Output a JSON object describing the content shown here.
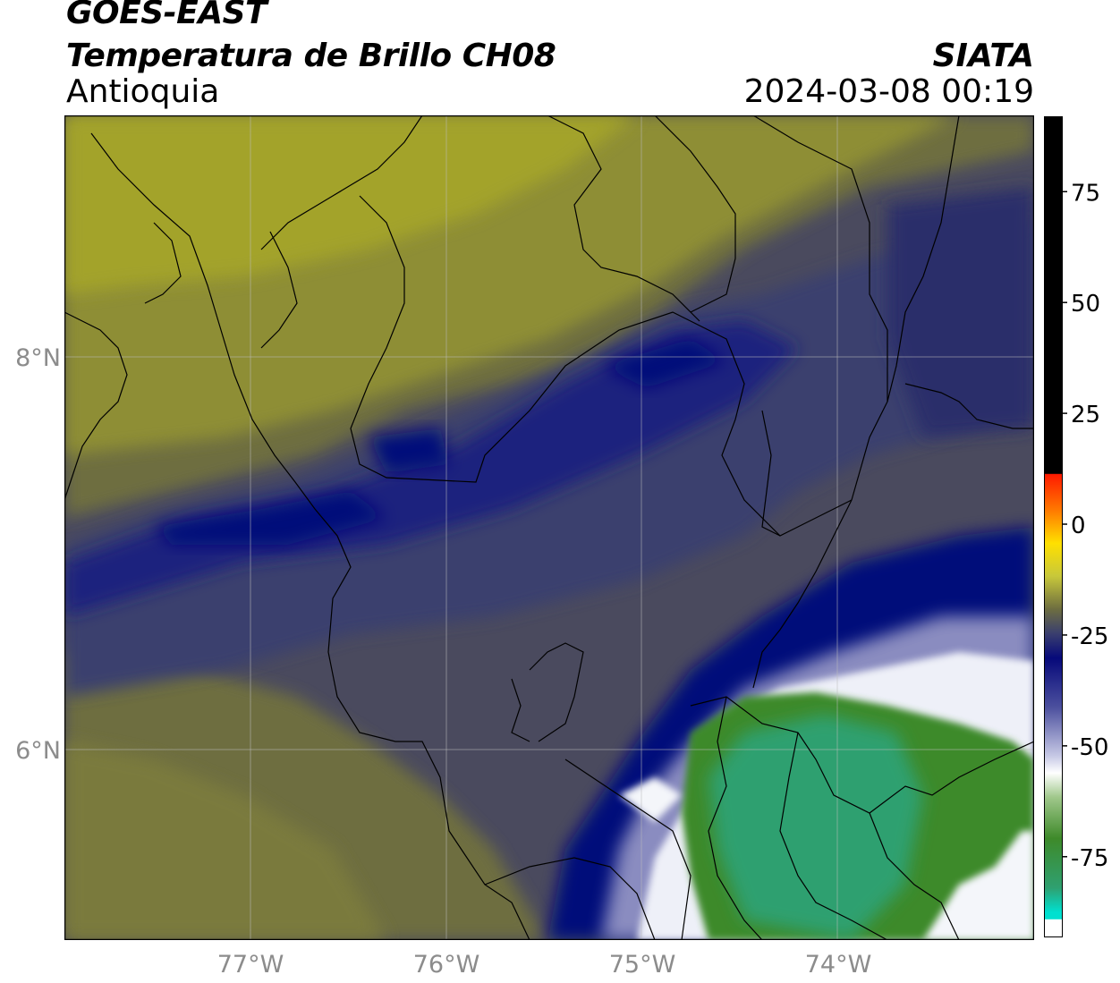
{
  "header": {
    "satellite": "GOES-EAST",
    "product": "Temperatura de Brillo CH08",
    "region": "Antioquia",
    "organization": "SIATA",
    "timestamp": "2024-03-08 00:19"
  },
  "map": {
    "lon_range": [
      -77.95,
      -73.0
    ],
    "lat_range": [
      5.05,
      9.25
    ],
    "lat_ticks": [
      {
        "value": 8,
        "label": "8°N"
      },
      {
        "value": 6,
        "label": "6°N"
      }
    ],
    "lon_ticks": [
      {
        "value": -77,
        "label": "77°W"
      },
      {
        "value": -76,
        "label": "76°W"
      },
      {
        "value": -75,
        "label": "75°W"
      },
      {
        "value": -74,
        "label": "74°W"
      }
    ],
    "colors": {
      "olive_light": "#a3a32a",
      "olive": "#8e8e35",
      "olive_dark": "#6e6e40",
      "slate": "#4a4a5e",
      "navy_gray": "#3a3f6e",
      "navy": "#1a237e",
      "deep_blue": "#06097a",
      "white": "#ffffff",
      "green_dark": "#3e8a2a",
      "green_teal": "#2fa070"
    }
  },
  "colorbar": {
    "ticks": [
      {
        "value": 75,
        "label": "75"
      },
      {
        "value": 50,
        "label": "50"
      },
      {
        "value": 25,
        "label": "25"
      },
      {
        "value": 0,
        "label": "0"
      },
      {
        "value": -25,
        "label": "-25"
      },
      {
        "value": -50,
        "label": "-50"
      },
      {
        "value": -75,
        "label": "-75"
      }
    ],
    "range": [
      -93,
      92
    ]
  }
}
